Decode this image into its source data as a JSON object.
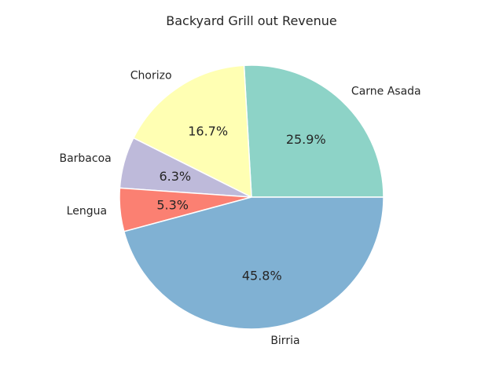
{
  "chart_data": {
    "type": "pie",
    "title": "Backyard Grill out Revenue",
    "categories": [
      "Carne Asada",
      "Chorizo",
      "Barbacoa",
      "Lengua",
      "Birria"
    ],
    "values": [
      25.9,
      16.7,
      6.3,
      5.3,
      45.8
    ],
    "value_labels": [
      "25.9%",
      "16.7%",
      "6.3%",
      "5.3%",
      "45.8%"
    ],
    "colors": [
      "#8dd3c7",
      "#ffffb3",
      "#bebada",
      "#fb8072",
      "#80b1d3"
    ],
    "start_angle_deg": 0,
    "direction": "counterclockwise",
    "legend": "none"
  }
}
